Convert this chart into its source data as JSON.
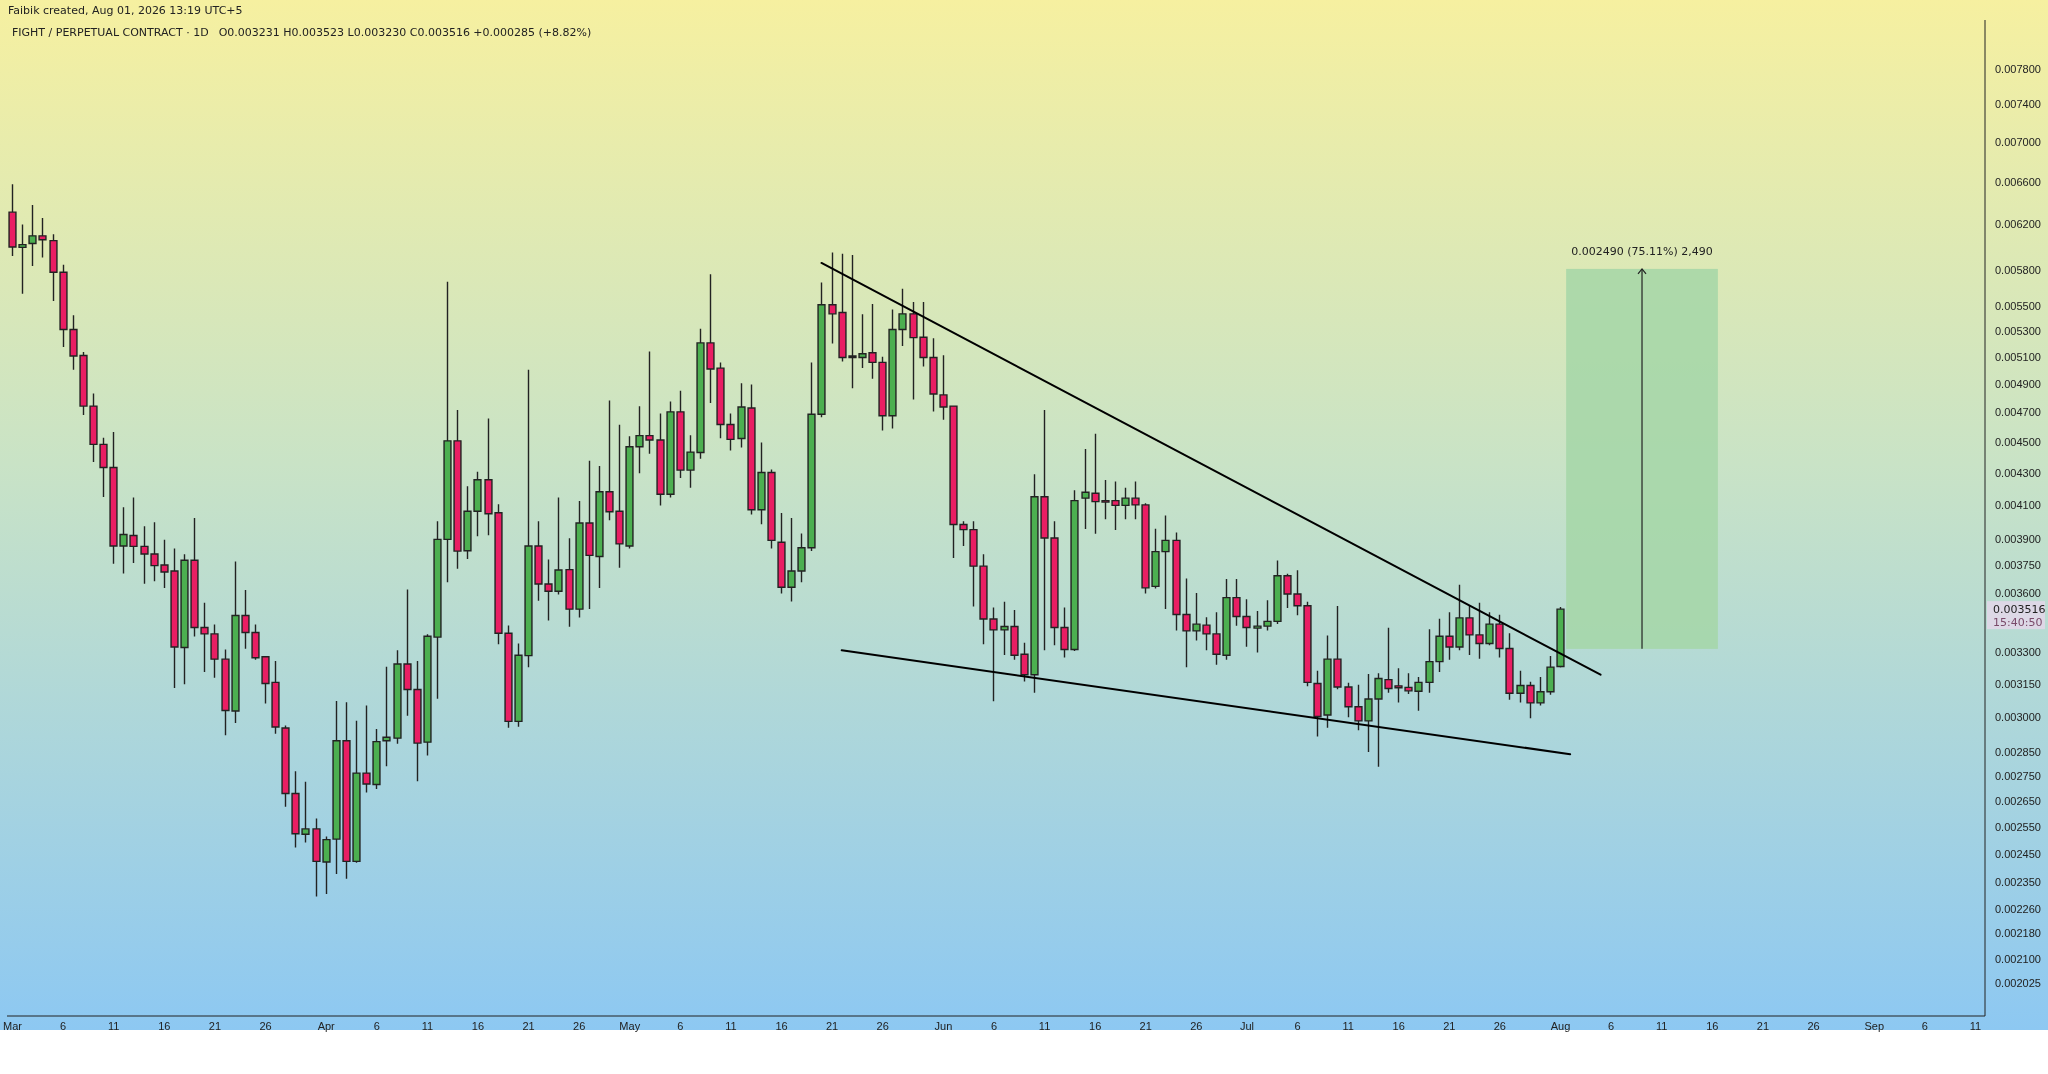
{
  "chart_data": {
    "type": "candlestick",
    "title": "FIGHT / PERPETUAL CONTRACT · 1D",
    "annotations": [
      "Faibik created, Aug 01, 2026 13:19 UTC+5",
      "O0.003231  H0.003523  L0.003230  C0.003516  +0.000285 (+8.82%)",
      "0.003516",
      "15:40:50"
    ],
    "log": true,
    "xlim": [
      "2026-02-28T12:00",
      "2026-09-12"
    ],
    "ylim": [
      0.00193,
      0.00838
    ],
    "xticks": [
      {
        "value": "2026-03-01",
        "label": "Mar"
      },
      {
        "value": "2026-03-06",
        "label": "6"
      },
      {
        "value": "2026-03-11",
        "label": "11"
      },
      {
        "value": "2026-03-16",
        "label": "16"
      },
      {
        "value": "2026-03-21",
        "label": "21"
      },
      {
        "value": "2026-03-26",
        "label": "26"
      },
      {
        "value": "2026-04-01",
        "label": "Apr"
      },
      {
        "value": "2026-04-06",
        "label": "6"
      },
      {
        "value": "2026-04-11",
        "label": "11"
      },
      {
        "value": "2026-04-16",
        "label": "16"
      },
      {
        "value": "2026-04-21",
        "label": "21"
      },
      {
        "value": "2026-04-26",
        "label": "26"
      },
      {
        "value": "2026-05-01",
        "label": "May"
      },
      {
        "value": "2026-05-06",
        "label": "6"
      },
      {
        "value": "2026-05-11",
        "label": "11"
      },
      {
        "value": "2026-05-16",
        "label": "16"
      },
      {
        "value": "2026-05-21",
        "label": "21"
      },
      {
        "value": "2026-05-26",
        "label": "26"
      },
      {
        "value": "2026-06-01",
        "label": "Jun"
      },
      {
        "value": "2026-06-06",
        "label": "6"
      },
      {
        "value": "2026-06-11",
        "label": "11"
      },
      {
        "value": "2026-06-16",
        "label": "16"
      },
      {
        "value": "2026-06-21",
        "label": "21"
      },
      {
        "value": "2026-06-26",
        "label": "26"
      },
      {
        "value": "2026-07-01",
        "label": "Jul"
      },
      {
        "value": "2026-07-06",
        "label": "6"
      },
      {
        "value": "2026-07-11",
        "label": "11"
      },
      {
        "value": "2026-07-16",
        "label": "16"
      },
      {
        "value": "2026-07-21",
        "label": "21"
      },
      {
        "value": "2026-07-26",
        "label": "26"
      },
      {
        "value": "2026-08-01",
        "label": "Aug"
      },
      {
        "value": "2026-08-06",
        "label": "6"
      },
      {
        "value": "2026-08-11",
        "label": "11"
      },
      {
        "value": "2026-08-16",
        "label": "16"
      },
      {
        "value": "2026-08-21",
        "label": "21"
      },
      {
        "value": "2026-08-26",
        "label": "26"
      },
      {
        "value": "2026-09-01",
        "label": "Sep"
      },
      {
        "value": "2026-09-06",
        "label": "6"
      },
      {
        "value": "2026-09-11",
        "label": "11"
      }
    ],
    "yticks": [
      {
        "value": 0.0078,
        "label": "0.007800"
      },
      {
        "value": 0.0074,
        "label": "0.007400"
      },
      {
        "value": 0.007,
        "label": "0.007000"
      },
      {
        "value": 0.0066,
        "label": "0.006600"
      },
      {
        "value": 0.0062,
        "label": "0.006200"
      },
      {
        "value": 0.0058,
        "label": "0.005800"
      },
      {
        "value": 0.0055,
        "label": "0.005500"
      },
      {
        "value": 0.0053,
        "label": "0.005300"
      },
      {
        "value": 0.0051,
        "label": "0.005100"
      },
      {
        "value": 0.0049,
        "label": "0.004900"
      },
      {
        "value": 0.0047,
        "label": "0.004700"
      },
      {
        "value": 0.0045,
        "label": "0.004500"
      },
      {
        "value": 0.0043,
        "label": "0.004300"
      },
      {
        "value": 0.0041,
        "label": "0.004100"
      },
      {
        "value": 0.0039,
        "label": "0.003900"
      },
      {
        "value": 0.00375,
        "label": "0.003750"
      },
      {
        "value": 0.0036,
        "label": "0.003600"
      },
      {
        "value": 0.0033,
        "label": "0.003300"
      },
      {
        "value": 0.00315,
        "label": "0.003150"
      },
      {
        "value": 0.003,
        "label": "0.003000"
      },
      {
        "value": 0.00285,
        "label": "0.002850"
      },
      {
        "value": 0.00275,
        "label": "0.002750"
      },
      {
        "value": 0.00265,
        "label": "0.002650"
      },
      {
        "value": 0.00255,
        "label": "0.002550"
      },
      {
        "value": 0.00245,
        "label": "0.002450"
      },
      {
        "value": 0.00235,
        "label": "0.002350"
      },
      {
        "value": 0.00226,
        "label": "0.002260"
      },
      {
        "value": 0.00218,
        "label": "0.002180"
      },
      {
        "value": 0.0021,
        "label": "0.002100"
      },
      {
        "value": 0.002025,
        "label": "0.002025"
      }
    ],
    "x": [
      "2026-03-01",
      "2026-03-02",
      "2026-03-03",
      "2026-03-04",
      "2026-03-05",
      "2026-03-06",
      "2026-03-07",
      "2026-03-08",
      "2026-03-09",
      "2026-03-10",
      "2026-03-11",
      "2026-03-12",
      "2026-03-13",
      "2026-03-14",
      "2026-03-15",
      "2026-03-16",
      "2026-03-17",
      "2026-03-18",
      "2026-03-19",
      "2026-03-20",
      "2026-03-21",
      "2026-03-22",
      "2026-03-23",
      "2026-03-24",
      "2026-03-25",
      "2026-03-26",
      "2026-03-27",
      "2026-03-28",
      "2026-03-29",
      "2026-03-30",
      "2026-03-31",
      "2026-04-01",
      "2026-04-02",
      "2026-04-03",
      "2026-04-04",
      "2026-04-05",
      "2026-04-06",
      "2026-04-07",
      "2026-04-08",
      "2026-04-09",
      "2026-04-10",
      "2026-04-11",
      "2026-04-12",
      "2026-04-13",
      "2026-04-14",
      "2026-04-15",
      "2026-04-16",
      "2026-04-17",
      "2026-04-18",
      "2026-04-19",
      "2026-04-20",
      "2026-04-21",
      "2026-04-22",
      "2026-04-23",
      "2026-04-24",
      "2026-04-25",
      "2026-04-26",
      "2026-04-27",
      "2026-04-28",
      "2026-04-29",
      "2026-04-30",
      "2026-05-01",
      "2026-05-02",
      "2026-05-03",
      "2026-05-04",
      "2026-05-05",
      "2026-05-06",
      "2026-05-07",
      "2026-05-08",
      "2026-05-09",
      "2026-05-10",
      "2026-05-11",
      "2026-05-12",
      "2026-05-13",
      "2026-05-14",
      "2026-05-15",
      "2026-05-16",
      "2026-05-17",
      "2026-05-18",
      "2026-05-19",
      "2026-05-20",
      "2026-05-21",
      "2026-05-22",
      "2026-05-23",
      "2026-05-24",
      "2026-05-25",
      "2026-05-26",
      "2026-05-27",
      "2026-05-28",
      "2026-05-29",
      "2026-05-30",
      "2026-05-31",
      "2026-06-01",
      "2026-06-02",
      "2026-06-03",
      "2026-06-04",
      "2026-06-05",
      "2026-06-06",
      "2026-06-07",
      "2026-06-08",
      "2026-06-09",
      "2026-06-10",
      "2026-06-11",
      "2026-06-12",
      "2026-06-13",
      "2026-06-14",
      "2026-06-15",
      "2026-06-16",
      "2026-06-17",
      "2026-06-18",
      "2026-06-19",
      "2026-06-20",
      "2026-06-21",
      "2026-06-22",
      "2026-06-23",
      "2026-06-24",
      "2026-06-25",
      "2026-06-26",
      "2026-06-27",
      "2026-06-28",
      "2026-06-29",
      "2026-06-30",
      "2026-07-01",
      "2026-07-02",
      "2026-07-03",
      "2026-07-04",
      "2026-07-05",
      "2026-07-06",
      "2026-07-07",
      "2026-07-08",
      "2026-07-09",
      "2026-07-10",
      "2026-07-11",
      "2026-07-12",
      "2026-07-13",
      "2026-07-14",
      "2026-07-15",
      "2026-07-16",
      "2026-07-17",
      "2026-07-18",
      "2026-07-19",
      "2026-07-20",
      "2026-07-21",
      "2026-07-22",
      "2026-07-23",
      "2026-07-24",
      "2026-07-25",
      "2026-07-26",
      "2026-07-27",
      "2026-07-28",
      "2026-07-29",
      "2026-07-30",
      "2026-07-31",
      "2026-08-01"
    ],
    "ohlc": [
      [
        0.006313,
        0.006571,
        0.005924,
        0.005997
      ],
      [
        0.005993,
        0.006193,
        0.005604,
        0.006018
      ],
      [
        0.006027,
        0.006372,
        0.005836,
        0.006096
      ],
      [
        0.006096,
        0.006251,
        0.005911,
        0.006061
      ],
      [
        0.006053,
        0.006104,
        0.005543,
        0.005778
      ],
      [
        0.005778,
        0.005836,
        0.00518,
        0.00531
      ],
      [
        0.00531,
        0.005418,
        0.005009,
        0.005106
      ],
      [
        0.00511,
        0.005132,
        0.004686,
        0.004743
      ],
      [
        0.004743,
        0.004826,
        0.004372,
        0.004483
      ],
      [
        0.004483,
        0.004522,
        0.004153,
        0.004332
      ],
      [
        0.004332,
        0.004561,
        0.003763,
        0.003859
      ],
      [
        0.003859,
        0.004082,
        0.003709,
        0.003925
      ],
      [
        0.003919,
        0.004141,
        0.003768,
        0.003857
      ],
      [
        0.003857,
        0.003969,
        0.003654,
        0.003814
      ],
      [
        0.003814,
        0.003992,
        0.003667,
        0.003749
      ],
      [
        0.003752,
        0.003891,
        0.003631,
        0.003714
      ],
      [
        0.003719,
        0.003841,
        0.003133,
        0.003325
      ],
      [
        0.003323,
        0.003808,
        0.003151,
        0.003779
      ],
      [
        0.003779,
        0.004018,
        0.003381,
        0.003422
      ],
      [
        0.003422,
        0.003546,
        0.003208,
        0.00339
      ],
      [
        0.00339,
        0.003434,
        0.003181,
        0.003266
      ],
      [
        0.003266,
        0.003309,
        0.002923,
        0.003028
      ],
      [
        0.003026,
        0.003768,
        0.002976,
        0.003483
      ],
      [
        0.003483,
        0.003613,
        0.00332,
        0.003397
      ],
      [
        0.003397,
        0.003434,
        0.003266,
        0.003273
      ],
      [
        0.003278,
        0.003278,
        0.003062,
        0.003151
      ],
      [
        0.003156,
        0.003254,
        0.002929,
        0.002955
      ],
      [
        0.002951,
        0.002959,
        0.00263,
        0.002679
      ],
      [
        0.002679,
        0.002766,
        0.002477,
        0.002525
      ],
      [
        0.002523,
        0.002723,
        0.002495,
        0.002543
      ],
      [
        0.002543,
        0.00258,
        0.002304,
        0.002424
      ],
      [
        0.002422,
        0.002512,
        0.002313,
        0.002503
      ],
      [
        0.002505,
        0.003067,
        0.002382,
        0.002896
      ],
      [
        0.002896,
        0.003062,
        0.002365,
        0.002424
      ],
      [
        0.002424,
        0.00298,
        0.002422,
        0.002761
      ],
      [
        0.002761,
        0.003047,
        0.002686,
        0.002717
      ],
      [
        0.002715,
        0.002944,
        0.0027,
        0.002892
      ],
      [
        0.002896,
        0.003226,
        0.002792,
        0.002911
      ],
      [
        0.002907,
        0.003306,
        0.002886,
        0.003243
      ],
      [
        0.003243,
        0.003615,
        0.003008,
        0.003123
      ],
      [
        0.003123,
        0.003254,
        0.002731,
        0.002886
      ],
      [
        0.00289,
        0.003385,
        0.002837,
        0.003378
      ],
      [
        0.003374,
        0.003999,
        0.003084,
        0.003897
      ],
      [
        0.003897,
        0.005692,
        0.003662,
        0.004506
      ],
      [
        0.004506,
        0.00471,
        0.003736,
        0.00383
      ],
      [
        0.003832,
        0.00421,
        0.00379,
        0.004062
      ],
      [
        0.004062,
        0.004301,
        0.003919,
        0.004255
      ],
      [
        0.004255,
        0.004653,
        0.003925,
        0.004047
      ],
      [
        0.004053,
        0.0041,
        0.003342,
        0.003393
      ],
      [
        0.003393,
        0.003429,
        0.002955,
        0.00298
      ],
      [
        0.00298,
        0.003339,
        0.002959,
        0.003285
      ],
      [
        0.003283,
        0.004998,
        0.003231,
        0.003859
      ],
      [
        0.003859,
        0.003999,
        0.003564,
        0.003649
      ],
      [
        0.003649,
        0.003779,
        0.003461,
        0.00361
      ],
      [
        0.00361,
        0.004141,
        0.003597,
        0.003725
      ],
      [
        0.003727,
        0.003899,
        0.003429,
        0.003516
      ],
      [
        0.003516,
        0.00412,
        0.003476,
        0.003992
      ],
      [
        0.003992,
        0.004372,
        0.003521,
        0.003806
      ],
      [
        0.0038,
        0.004338,
        0.003631,
        0.00418
      ],
      [
        0.00418,
        0.004777,
        0.004012,
        0.004059
      ],
      [
        0.004062,
        0.004609,
        0.003741,
        0.003871
      ],
      [
        0.003859,
        0.004532,
        0.003849,
        0.004467
      ],
      [
        0.004467,
        0.004737,
        0.004301,
        0.004541
      ],
      [
        0.004541,
        0.005136,
        0.004425,
        0.004512
      ],
      [
        0.004512,
        0.004686,
        0.0041,
        0.004165
      ],
      [
        0.004165,
        0.00477,
        0.00415,
        0.004703
      ],
      [
        0.004703,
        0.004847,
        0.00427,
        0.004316
      ],
      [
        0.004316,
        0.004538,
        0.00421,
        0.004432
      ],
      [
        0.004429,
        0.00531,
        0.004394,
        0.005206
      ],
      [
        0.005206,
        0.005754,
        0.00477,
        0.005009
      ],
      [
        0.005016,
        0.005052,
        0.004528,
        0.004616
      ],
      [
        0.004616,
        0.004686,
        0.004447,
        0.004516
      ],
      [
        0.004522,
        0.004901,
        0.004467,
        0.004737
      ],
      [
        0.00473,
        0.004892,
        0.004047,
        0.004071
      ],
      [
        0.004071,
        0.00449,
        0.003989,
        0.004301
      ],
      [
        0.004301,
        0.004316,
        0.003849,
        0.003891
      ],
      [
        0.00388,
        0.004047,
        0.003602,
        0.003631
      ],
      [
        0.003631,
        0.004018,
        0.003559,
        0.003719
      ],
      [
        0.003719,
        0.003927,
        0.003662,
        0.003849
      ],
      [
        0.003849,
        0.005052,
        0.003835,
        0.004686
      ],
      [
        0.004686,
        0.005684,
        0.00467,
        0.005507
      ],
      [
        0.005507,
        0.005941,
        0.005206,
        0.005434
      ],
      [
        0.005445,
        0.005932,
        0.00507,
        0.005095
      ],
      [
        0.005106,
        0.00592,
        0.004874,
        0.005095
      ],
      [
        0.005095,
        0.005426,
        0.005023,
        0.005124
      ],
      [
        0.005131,
        0.005507,
        0.004944,
        0.005059
      ],
      [
        0.005059,
        0.005095,
        0.00458,
        0.004676
      ],
      [
        0.004676,
        0.005464,
        0.004593,
        0.00531
      ],
      [
        0.00531,
        0.005632,
        0.005187,
        0.005434
      ],
      [
        0.005434,
        0.005523,
        0.004794,
        0.005247
      ],
      [
        0.00525,
        0.005523,
        0.005034,
        0.005095
      ],
      [
        0.005095,
        0.005236,
        0.00471,
        0.004828
      ],
      [
        0.004822,
        0.005106,
        0.004653,
        0.004737
      ],
      [
        0.004743,
        0.004743,
        0.003795,
        0.003983
      ],
      [
        0.003983,
        0.003999,
        0.003863,
        0.003953
      ],
      [
        0.003953,
        0.003999,
        0.003534,
        0.003746
      ],
      [
        0.003746,
        0.003808,
        0.003342,
        0.003465
      ],
      [
        0.003465,
        0.003521,
        0.003073,
        0.00341
      ],
      [
        0.00341,
        0.003551,
        0.00329,
        0.003427
      ],
      [
        0.003427,
        0.003508,
        0.003266,
        0.003285
      ],
      [
        0.00329,
        0.003342,
        0.003163,
        0.003192
      ],
      [
        0.003192,
        0.004285,
        0.003111,
        0.00415
      ],
      [
        0.00415,
        0.00471,
        0.003313,
        0.003905
      ],
      [
        0.003905,
        0.003999,
        0.003337,
        0.003422
      ],
      [
        0.003422,
        0.003521,
        0.003278,
        0.003313
      ],
      [
        0.003313,
        0.004186,
        0.003309,
        0.004126
      ],
      [
        0.004141,
        0.004448,
        0.003961,
        0.004177
      ],
      [
        0.004171,
        0.004548,
        0.003933,
        0.00412
      ],
      [
        0.004126,
        0.004249,
        0.004018,
        0.00412
      ],
      [
        0.004126,
        0.00424,
        0.003955,
        0.004097
      ],
      [
        0.004097,
        0.004201,
        0.004018,
        0.004141
      ],
      [
        0.004141,
        0.00424,
        0.004018,
        0.0041
      ],
      [
        0.0041,
        0.004106,
        0.003602,
        0.003628
      ],
      [
        0.003636,
        0.003955,
        0.003628,
        0.003827
      ],
      [
        0.003827,
        0.004033,
        0.003521,
        0.003891
      ],
      [
        0.003891,
        0.003933,
        0.00341,
        0.003488
      ],
      [
        0.003488,
        0.003675,
        0.003231,
        0.003405
      ],
      [
        0.003405,
        0.003597,
        0.003361,
        0.003439
      ],
      [
        0.003434,
        0.003471,
        0.003313,
        0.00339
      ],
      [
        0.00339,
        0.003496,
        0.003243,
        0.00329
      ],
      [
        0.003285,
        0.003672,
        0.003266,
        0.003576
      ],
      [
        0.003576,
        0.003672,
        0.003434,
        0.003478
      ],
      [
        0.003478,
        0.003564,
        0.00333,
        0.003422
      ],
      [
        0.003419,
        0.003503,
        0.003302,
        0.003429
      ],
      [
        0.003429,
        0.003559,
        0.00341,
        0.003453
      ],
      [
        0.003453,
        0.003773,
        0.003443,
        0.003693
      ],
      [
        0.003693,
        0.003701,
        0.003526,
        0.003595
      ],
      [
        0.003595,
        0.003719,
        0.003488,
        0.003534
      ],
      [
        0.003534,
        0.003551,
        0.003142,
        0.003156
      ],
      [
        0.003151,
        0.003208,
        0.002917,
        0.003001
      ],
      [
        0.003008,
        0.003378,
        0.002955,
        0.003266
      ],
      [
        0.003266,
        0.003529,
        0.003128,
        0.003135
      ],
      [
        0.003135,
        0.003151,
        0.003001,
        0.003045
      ],
      [
        0.003045,
        0.003142,
        0.002944,
        0.002982
      ],
      [
        0.002982,
        0.003192,
        0.002851,
        0.00308
      ],
      [
        0.00308,
        0.003196,
        0.00279,
        0.003174
      ],
      [
        0.003169,
        0.003417,
        0.003111,
        0.003128
      ],
      [
        0.00314,
        0.003219,
        0.003067,
        0.003131
      ],
      [
        0.003133,
        0.003196,
        0.003106,
        0.003117
      ],
      [
        0.003115,
        0.003178,
        0.00303,
        0.003156
      ],
      [
        0.003156,
        0.00341,
        0.003111,
        0.003254
      ],
      [
        0.003254,
        0.003463,
        0.003208,
        0.003378
      ],
      [
        0.003378,
        0.003496,
        0.003266,
        0.003325
      ],
      [
        0.003325,
        0.003641,
        0.003313,
        0.003471
      ],
      [
        0.003471,
        0.003534,
        0.00329,
        0.003385
      ],
      [
        0.003385,
        0.003546,
        0.003271,
        0.003342
      ],
      [
        0.003342,
        0.003496,
        0.003337,
        0.003439
      ],
      [
        0.003439,
        0.003483,
        0.003278,
        0.003318
      ],
      [
        0.003318,
        0.00339,
        0.00308,
        0.003106
      ],
      [
        0.003106,
        0.003208,
        0.003067,
        0.003142
      ],
      [
        0.003142,
        0.003156,
        0.002997,
        0.003062
      ],
      [
        0.003062,
        0.003178,
        0.003054,
        0.003113
      ],
      [
        0.003113,
        0.003278,
        0.003102,
        0.003228
      ],
      [
        0.003231,
        0.003523,
        0.00323,
        0.003516
      ]
    ],
    "series": [
      {
        "type": "line",
        "x": [
          "2026-05-20",
          "2026-08-05"
        ],
        "values": [
          0.005857,
          0.003192
        ],
        "color": "#000000"
      },
      {
        "type": "line",
        "x": [
          "2026-05-22",
          "2026-08-02"
        ],
        "values": [
          0.003309,
          0.002839
        ],
        "color": "#000000"
      }
    ],
    "bands": [
      {
        "axis": "y",
        "from": 0.003316,
        "to": 0.005806,
        "label": "0.002490 (75.11%) 2,490",
        "color": "#a5d6a7"
      }
    ]
  }
}
